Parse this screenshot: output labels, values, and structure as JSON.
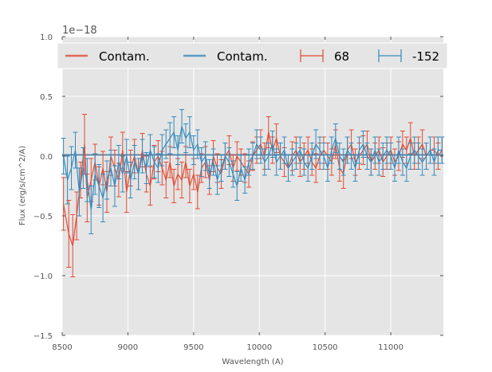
{
  "chart_data": {
    "type": "line",
    "xlabel": "Wavelength (A)",
    "ylabel": "Flux (erg/s/cm^2/A)",
    "offset_text": "1e−18",
    "xlim": [
      8500,
      11400
    ],
    "ylim": [
      -1.5,
      1.0
    ],
    "x_ticks": [
      8500,
      9000,
      9500,
      10000,
      10500,
      11000
    ],
    "x_tick_labels": [
      "8500",
      "9000",
      "9500",
      "10000",
      "10500",
      "11000"
    ],
    "y_ticks": [
      -1.5,
      -1.0,
      -0.5,
      0.0,
      0.5,
      1.0
    ],
    "y_tick_labels": [
      "−1.5",
      "−1.0",
      "−0.5",
      "0.0",
      "0.5",
      "1.0"
    ],
    "grid": true,
    "legend_position": "top",
    "colors": {
      "red": "#E24A33",
      "blue": "#348ABD",
      "background": "#E5E5E5",
      "grid": "#FFFFFF"
    },
    "series": [
      {
        "name": "Contam.",
        "kind": "line",
        "color": "#E24A33",
        "x": [
          8500,
          11400
        ],
        "y": [
          0.01,
          0.01
        ]
      },
      {
        "name": "Contam.",
        "kind": "line",
        "color": "#348ABD",
        "x": [
          8500,
          11400
        ],
        "y": [
          0.01,
          0.01
        ]
      },
      {
        "name": "68",
        "kind": "errorbar",
        "color": "#E24A33",
        "x": [
          8510,
          8550,
          8580,
          8610,
          8640,
          8670,
          8690,
          8720,
          8750,
          8780,
          8810,
          8840,
          8870,
          8900,
          8930,
          8960,
          8990,
          9020,
          9050,
          9080,
          9110,
          9140,
          9170,
          9200,
          9230,
          9260,
          9290,
          9320,
          9350,
          9380,
          9410,
          9440,
          9470,
          9500,
          9530,
          9560,
          9590,
          9620,
          9650,
          9680,
          9710,
          9740,
          9770,
          9800,
          9830,
          9860,
          9890,
          9920,
          9950,
          9980,
          10010,
          10040,
          10070,
          10100,
          10130,
          10160,
          10190,
          10220,
          10250,
          10280,
          10310,
          10340,
          10370,
          10400,
          10430,
          10460,
          10490,
          10520,
          10550,
          10580,
          10610,
          10640,
          10670,
          10700,
          10730,
          10760,
          10790,
          10820,
          10850,
          10880,
          10910,
          10940,
          10970,
          11000,
          11030,
          11060,
          11090,
          11120,
          11150,
          11180,
          11210,
          11240,
          11270,
          11300,
          11330,
          11360,
          11390
        ],
        "y": [
          -0.4,
          -0.65,
          -0.75,
          -0.5,
          -0.2,
          0.1,
          -0.35,
          -0.2,
          -0.05,
          -0.25,
          -0.1,
          -0.3,
          0.0,
          -0.1,
          -0.2,
          0.05,
          -0.3,
          -0.1,
          0.0,
          -0.15,
          0.05,
          -0.15,
          -0.25,
          -0.05,
          0.0,
          -0.1,
          -0.2,
          -0.05,
          -0.25,
          -0.15,
          -0.2,
          -0.05,
          -0.25,
          -0.15,
          -0.3,
          -0.1,
          -0.05,
          -0.2,
          0.0,
          -0.1,
          -0.15,
          0.0,
          0.05,
          -0.1,
          0.0,
          -0.05,
          -0.1,
          -0.15,
          0.0,
          0.05,
          0.1,
          0.0,
          0.2,
          0.05,
          0.15,
          0.0,
          -0.05,
          -0.1,
          0.0,
          0.05,
          -0.05,
          0.0,
          0.05,
          -0.05,
          -0.1,
          0.0,
          0.05,
          0.0,
          -0.05,
          0.1,
          -0.1,
          -0.15,
          0.05,
          0.1,
          -0.05,
          0.0,
          0.05,
          0.1,
          -0.05,
          0.0,
          0.05,
          -0.05,
          0.0,
          0.05,
          -0.05,
          0.0,
          0.1,
          0.05,
          0.15,
          0.0,
          0.05,
          0.1,
          0.0,
          0.05,
          0.05,
          0.0,
          0.05
        ],
        "err": [
          0.22,
          0.28,
          0.26,
          0.2,
          0.15,
          0.25,
          0.2,
          0.18,
          0.15,
          0.16,
          0.14,
          0.17,
          0.16,
          0.15,
          0.14,
          0.15,
          0.17,
          0.15,
          0.14,
          0.13,
          0.14,
          0.15,
          0.16,
          0.14,
          0.13,
          0.14,
          0.15,
          0.13,
          0.14,
          0.13,
          0.15,
          0.13,
          0.14,
          0.13,
          0.14,
          0.12,
          0.13,
          0.12,
          0.13,
          0.12,
          0.12,
          0.11,
          0.12,
          0.11,
          0.12,
          0.11,
          0.12,
          0.11,
          0.12,
          0.11,
          0.12,
          0.11,
          0.13,
          0.11,
          0.12,
          0.11,
          0.12,
          0.11,
          0.12,
          0.11,
          0.12,
          0.11,
          0.11,
          0.11,
          0.12,
          0.11,
          0.11,
          0.11,
          0.11,
          0.12,
          0.11,
          0.12,
          0.11,
          0.12,
          0.11,
          0.11,
          0.12,
          0.11,
          0.11,
          0.11,
          0.11,
          0.12,
          0.11,
          0.11,
          0.11,
          0.12,
          0.11,
          0.11,
          0.13,
          0.11,
          0.11,
          0.12,
          0.11,
          0.11,
          0.11,
          0.11,
          0.11
        ]
      },
      {
        "name": "-152",
        "kind": "errorbar",
        "color": "#348ABD",
        "x": [
          8510,
          8540,
          8570,
          8600,
          8630,
          8660,
          8690,
          8720,
          8750,
          8780,
          8810,
          8840,
          8870,
          8900,
          8930,
          8960,
          8990,
          9020,
          9050,
          9080,
          9110,
          9140,
          9170,
          9200,
          9230,
          9260,
          9290,
          9320,
          9350,
          9380,
          9410,
          9440,
          9470,
          9500,
          9530,
          9560,
          9590,
          9620,
          9650,
          9680,
          9710,
          9740,
          9770,
          9800,
          9830,
          9860,
          9890,
          9920,
          9950,
          9980,
          10010,
          10040,
          10070,
          10100,
          10130,
          10160,
          10190,
          10220,
          10250,
          10280,
          10310,
          10340,
          10370,
          10400,
          10430,
          10460,
          10490,
          10520,
          10550,
          10580,
          10610,
          10640,
          10670,
          10700,
          10730,
          10760,
          10790,
          10820,
          10850,
          10880,
          10910,
          10940,
          10970,
          11000,
          11030,
          11060,
          11090,
          11120,
          11150,
          11180,
          11210,
          11240,
          11270,
          11300,
          11330,
          11360,
          11390
        ],
        "y": [
          0.0,
          -0.2,
          -0.1,
          0.05,
          -0.3,
          -0.1,
          -0.2,
          -0.45,
          -0.15,
          -0.25,
          -0.35,
          -0.2,
          -0.1,
          -0.25,
          -0.05,
          -0.15,
          0.0,
          -0.2,
          -0.05,
          -0.15,
          0.0,
          -0.1,
          0.05,
          -0.05,
          -0.1,
          0.05,
          0.1,
          0.15,
          0.2,
          0.05,
          0.25,
          0.15,
          0.2,
          0.05,
          0.1,
          -0.05,
          0.0,
          -0.15,
          -0.05,
          -0.2,
          -0.1,
          0.0,
          -0.05,
          -0.15,
          -0.25,
          -0.1,
          -0.2,
          -0.05,
          0.0,
          0.1,
          0.05,
          -0.05,
          0.0,
          0.1,
          -0.05,
          0.0,
          0.05,
          -0.1,
          -0.05,
          0.0,
          0.05,
          -0.05,
          -0.1,
          0.0,
          0.1,
          0.05,
          0.0,
          -0.1,
          0.05,
          0.15,
          0.0,
          -0.05,
          0.05,
          0.0,
          -0.1,
          0.05,
          0.1,
          0.0,
          -0.05,
          0.05,
          -0.05,
          0.0,
          0.05,
          0.0,
          -0.1,
          0.05,
          -0.05,
          -0.1,
          0.0,
          0.05,
          0.0,
          -0.05,
          0.0,
          0.05,
          -0.05,
          0.05,
          0.05
        ],
        "err": [
          0.15,
          0.2,
          0.18,
          0.15,
          0.2,
          0.17,
          0.18,
          0.2,
          0.17,
          0.18,
          0.2,
          0.16,
          0.15,
          0.17,
          0.14,
          0.15,
          0.14,
          0.15,
          0.14,
          0.13,
          0.14,
          0.13,
          0.13,
          0.13,
          0.12,
          0.13,
          0.12,
          0.13,
          0.13,
          0.12,
          0.14,
          0.12,
          0.13,
          0.12,
          0.12,
          0.12,
          0.12,
          0.12,
          0.11,
          0.12,
          0.11,
          0.11,
          0.12,
          0.11,
          0.12,
          0.11,
          0.11,
          0.11,
          0.11,
          0.12,
          0.11,
          0.11,
          0.11,
          0.11,
          0.11,
          0.11,
          0.11,
          0.11,
          0.11,
          0.11,
          0.11,
          0.11,
          0.11,
          0.11,
          0.12,
          0.11,
          0.11,
          0.11,
          0.11,
          0.12,
          0.11,
          0.11,
          0.11,
          0.11,
          0.11,
          0.11,
          0.11,
          0.11,
          0.11,
          0.11,
          0.11,
          0.11,
          0.11,
          0.11,
          0.11,
          0.11,
          0.11,
          0.11,
          0.11,
          0.11,
          0.11,
          0.11,
          0.11,
          0.11,
          0.11,
          0.11,
          0.11
        ]
      }
    ]
  }
}
